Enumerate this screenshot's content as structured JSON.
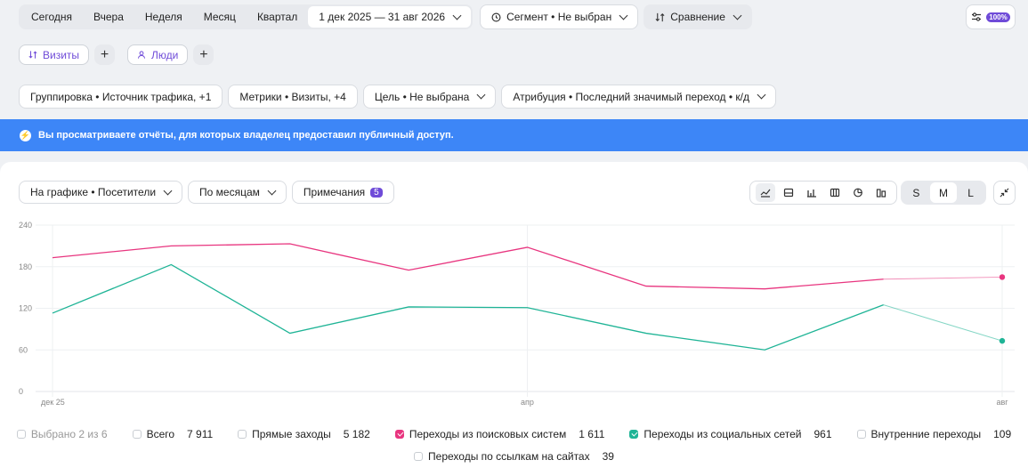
{
  "period": {
    "options": [
      "Сегодня",
      "Вчера",
      "Неделя",
      "Месяц",
      "Квартал"
    ],
    "range": "1 дек 2025 — 31 авг 2026"
  },
  "segment": "Сегмент • Не выбран",
  "comparison": "Сравнение",
  "sampling": "100%",
  "groups": {
    "visits": "Визиты",
    "people": "Люди"
  },
  "filters": {
    "grouping": "Группировка • Источник трафика, +1",
    "metrics": "Метрики • Визиты, +4",
    "goal": "Цель • Не выбрана",
    "attribution": "Атрибуция • Последний значимый переход • к/д"
  },
  "banner": "Вы просматриваете отчёты, для которых владелец предоставил публичный доступ.",
  "chart_controls": {
    "on_chart": "На графике • Посетители",
    "interval": "По месяцам",
    "notes": "Примечания",
    "notes_count": "5",
    "sizes": [
      "S",
      "M",
      "L"
    ],
    "active_size": "M"
  },
  "colors": {
    "accent": "#6f4bd8",
    "banner": "#3d86f7",
    "search": "#e8357f",
    "social": "#1fb496"
  },
  "chart_data": {
    "type": "line",
    "x": [
      "2025-12",
      "2026-01",
      "2026-02",
      "2026-03",
      "2026-04",
      "2026-05",
      "2026-06",
      "2026-07",
      "2026-08"
    ],
    "x_tick_labels": [
      {
        "at": "2025-12",
        "label": "дек 25"
      },
      {
        "at": "2026-04",
        "label": "апр"
      },
      {
        "at": "2026-08",
        "label": "авг"
      }
    ],
    "ylim": [
      0,
      240
    ],
    "yticks": [
      0,
      60,
      120,
      180,
      240
    ],
    "series": [
      {
        "name": "Переходы из поисковых систем",
        "color": "#e8357f",
        "values": [
          193,
          210,
          213,
          175,
          208,
          152,
          148,
          162,
          165
        ]
      },
      {
        "name": "Переходы из социальных сетей",
        "color": "#1fb496",
        "values": [
          113,
          183,
          84,
          122,
          121,
          84,
          60,
          125,
          73
        ]
      }
    ],
    "partial_last_period": true,
    "grid": true
  },
  "legend": {
    "selected": "Выбрано 2 из 6",
    "items": [
      {
        "label": "Всего",
        "value": "7 911",
        "checked": false,
        "color": ""
      },
      {
        "label": "Прямые заходы",
        "value": "5 182",
        "checked": false,
        "color": ""
      },
      {
        "label": "Переходы из поисковых систем",
        "value": "1 611",
        "checked": true,
        "color": "pink"
      },
      {
        "label": "Переходы из социальных сетей",
        "value": "961",
        "checked": true,
        "color": "green"
      },
      {
        "label": "Внутренние переходы",
        "value": "109",
        "checked": false,
        "color": ""
      }
    ],
    "items_row2": [
      {
        "label": "Переходы по ссылкам на сайтах",
        "value": "39",
        "checked": false,
        "color": ""
      }
    ]
  }
}
